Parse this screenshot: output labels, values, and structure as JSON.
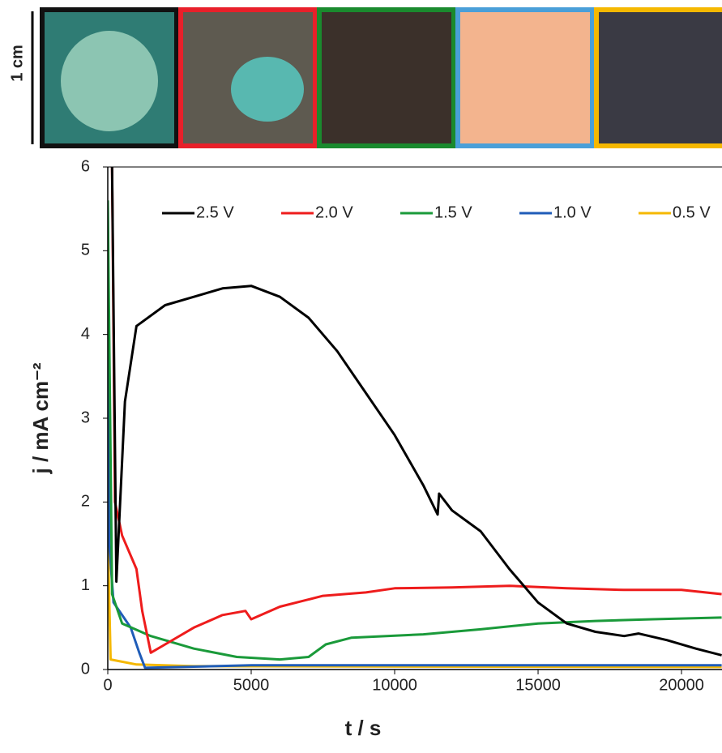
{
  "scale_label": "1 cm",
  "chart_data": {
    "type": "line",
    "xlabel": "t / s",
    "ylabel": "j / mA cm⁻²",
    "xlim": [
      0,
      21400
    ],
    "ylim": [
      0,
      6
    ],
    "xticks": [
      0,
      5000,
      10000,
      15000,
      20000
    ],
    "yticks": [
      0,
      1,
      2,
      3,
      4,
      5,
      6
    ],
    "series": [
      {
        "name": "2.5 V",
        "color": "#000000",
        "x": [
          150,
          300,
          600,
          1000,
          2000,
          3000,
          4000,
          5000,
          6000,
          7000,
          8000,
          9000,
          10000,
          11000,
          11500,
          11550,
          12000,
          13000,
          14000,
          15000,
          16000,
          17000,
          18000,
          18500,
          19500,
          20500,
          21400
        ],
        "values": [
          6,
          1.05,
          3.2,
          4.1,
          4.35,
          4.45,
          4.55,
          4.58,
          4.45,
          4.2,
          3.8,
          3.3,
          2.8,
          2.2,
          1.85,
          2.1,
          1.9,
          1.65,
          1.2,
          0.8,
          0.55,
          0.45,
          0.4,
          0.43,
          0.35,
          0.25,
          0.17
        ]
      },
      {
        "name": "2.0 V",
        "color": "#ee1c1c",
        "x": [
          150,
          250,
          500,
          1000,
          1200,
          1500,
          2000,
          3000,
          4000,
          4800,
          5000,
          6000,
          7500,
          9000,
          10000,
          12000,
          14000,
          16000,
          18000,
          20000,
          21400
        ],
        "values": [
          6,
          2.0,
          1.6,
          1.2,
          0.7,
          0.2,
          0.3,
          0.5,
          0.65,
          0.7,
          0.6,
          0.75,
          0.88,
          0.92,
          0.97,
          0.98,
          1.0,
          0.97,
          0.95,
          0.95,
          0.9
        ]
      },
      {
        "name": "1.5 V",
        "color": "#1a9a3a",
        "x": [
          0,
          150,
          500,
          1500,
          3000,
          4500,
          6000,
          7000,
          7600,
          8500,
          11000,
          13000,
          15000,
          17000,
          19000,
          21400
        ],
        "values": [
          5.6,
          0.9,
          0.55,
          0.4,
          0.25,
          0.15,
          0.12,
          0.15,
          0.3,
          0.38,
          0.42,
          0.48,
          0.55,
          0.58,
          0.6,
          0.62
        ]
      },
      {
        "name": "1.0 V",
        "color": "#1f5cb8",
        "x": [
          0,
          50,
          200,
          800,
          1100,
          1300,
          5000,
          21400
        ],
        "values": [
          5.55,
          1.5,
          0.8,
          0.5,
          0.2,
          0.02,
          0.05,
          0.05
        ]
      },
      {
        "name": "0.5 V",
        "color": "#f5b800",
        "x": [
          0,
          100,
          1000,
          3000,
          21400
        ],
        "values": [
          1.6,
          0.12,
          0.06,
          0.04,
          0.03
        ]
      }
    ]
  }
}
